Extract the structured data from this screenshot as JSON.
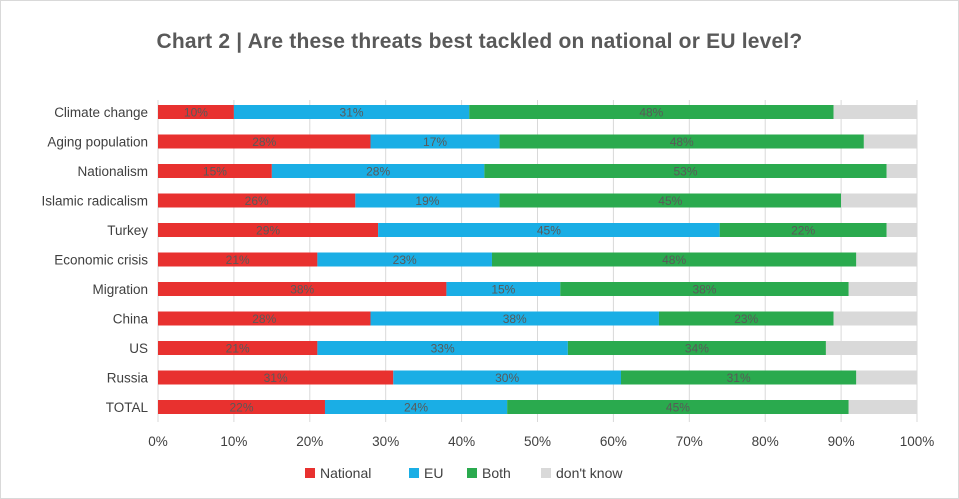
{
  "chart_data": {
    "type": "bar",
    "orientation": "horizontal",
    "stacked": true,
    "title": "Chart 2 | Are these threats best tackled on national or EU level?",
    "categories": [
      "Climate change",
      "Aging population",
      "Nationalism",
      "Islamic radicalism",
      "Turkey",
      "Economic crisis",
      "Migration",
      "China",
      "US",
      "Russia",
      "TOTAL"
    ],
    "series": [
      {
        "name": "National",
        "color": "#e8312f",
        "values": [
          10,
          28,
          15,
          26,
          29,
          21,
          38,
          28,
          21,
          31,
          22
        ],
        "labels": [
          "10%",
          "28%",
          "15%",
          "26%",
          "29%",
          "21%",
          "38%",
          "28%",
          "21%",
          "31%",
          "22%"
        ]
      },
      {
        "name": "EU",
        "color": "#1aaee5",
        "values": [
          31,
          17,
          28,
          19,
          45,
          23,
          15,
          38,
          33,
          30,
          24
        ],
        "labels": [
          "31%",
          "17%",
          "28%",
          "19%",
          "45%",
          "23%",
          "15%",
          "38%",
          "33%",
          "30%",
          "24%"
        ]
      },
      {
        "name": "Both",
        "color": "#2aaa4e",
        "values": [
          48,
          48,
          53,
          45,
          22,
          48,
          38,
          23,
          34,
          31,
          45
        ],
        "labels": [
          "48%",
          "48%",
          "53%",
          "45%",
          "22%",
          "48%",
          "38%",
          "23%",
          "34%",
          "31%",
          "45%"
        ]
      },
      {
        "name": "don't know",
        "color": "#d9d9d9",
        "values": [
          11,
          7,
          4,
          11,
          4,
          8,
          9,
          11,
          12,
          8,
          9
        ],
        "labels": [
          "",
          "",
          "",
          "",
          "",
          "",
          "",
          "",
          "",
          "",
          ""
        ]
      }
    ],
    "xlim": [
      0,
      100
    ],
    "x_ticks": [
      "0%",
      "10%",
      "20%",
      "30%",
      "40%",
      "50%",
      "60%",
      "70%",
      "80%",
      "90%",
      "100%"
    ],
    "grid": true,
    "legend_position": "bottom"
  }
}
